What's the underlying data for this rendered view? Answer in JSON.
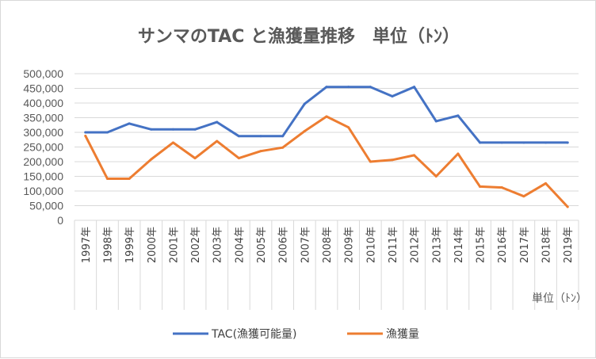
{
  "chart_data": {
    "type": "line",
    "title": "サンマのTAC と漁獲量推移　単位（ﾄﾝ）",
    "categories": [
      "1997年",
      "1998年",
      "1999年",
      "2000年",
      "2001年",
      "2002年",
      "2003年",
      "2004年",
      "2005年",
      "2006年",
      "2007年",
      "2008年",
      "2009年",
      "2010年",
      "2011年",
      "2012年",
      "2013年",
      "2014年",
      "2015年",
      "2016年",
      "2017年",
      "2018年",
      "2019年"
    ],
    "series": [
      {
        "name": "TAC(漁獲可能量)",
        "color": "#4472C4",
        "values": [
          300000,
          300000,
          330000,
          310000,
          310000,
          310000,
          335000,
          287000,
          287000,
          287000,
          397000,
          455000,
          455000,
          455000,
          423000,
          455000,
          338000,
          357000,
          265000,
          265000,
          265000,
          265000,
          265000
        ]
      },
      {
        "name": "漁獲量",
        "color": "#ED7D31",
        "values": [
          288000,
          142000,
          142000,
          208000,
          265000,
          212000,
          270000,
          212000,
          236000,
          248000,
          304000,
          354000,
          317000,
          200000,
          206000,
          222000,
          150000,
          227000,
          115000,
          112000,
          82000,
          126000,
          46000
        ]
      }
    ],
    "ylim": [
      0,
      500000
    ],
    "yticks": [
      "0",
      "50,000",
      "100,000",
      "150,000",
      "200,000",
      "250,000",
      "300,000",
      "350,000",
      "400,000",
      "450,000",
      "500,000"
    ],
    "unit_label": "単位（ﾄﾝ）",
    "grid": true,
    "legend": "bottom"
  }
}
